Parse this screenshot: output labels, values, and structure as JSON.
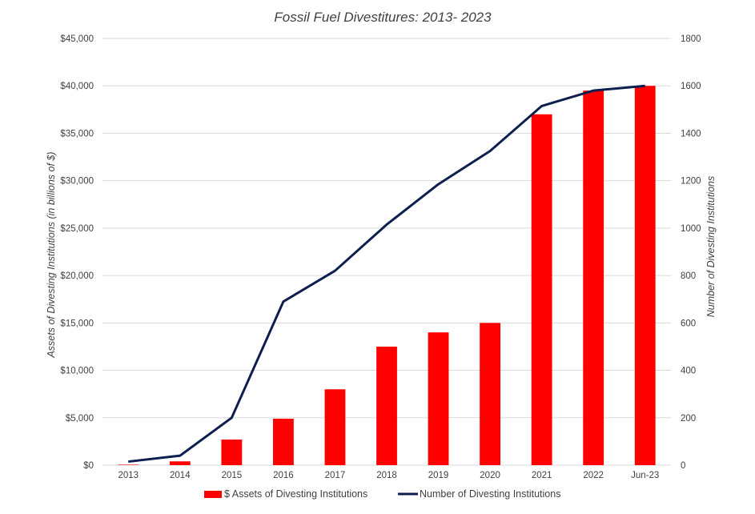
{
  "chart_data": {
    "type": "bar",
    "title": "Fossil Fuel Divestitures: 2013- 2023",
    "categories": [
      "2013",
      "2014",
      "2015",
      "2016",
      "2017",
      "2018",
      "2019",
      "2020",
      "2021",
      "2022",
      "Jun-23"
    ],
    "ylabel": "Assets of Divesting Institutions (in billions of $)",
    "y2label": "Number of Divesting Institutions",
    "ylim": [
      0,
      45000
    ],
    "y2lim": [
      0,
      1800
    ],
    "y_ticks": [
      "$0",
      "$5,000",
      "$10,000",
      "$15,000",
      "$20,000",
      "$25,000",
      "$30,000",
      "$35,000",
      "$40,000",
      "$45,000"
    ],
    "y2_ticks": [
      "0",
      "200",
      "400",
      "600",
      "800",
      "1000",
      "1200",
      "1400",
      "1600",
      "1800"
    ],
    "grid": true,
    "legend_position": "bottom",
    "series": [
      {
        "name": "$ Assets of Divesting Institutions",
        "type": "bar",
        "axis": "left",
        "color": "#ff0000",
        "values": [
          50,
          400,
          2700,
          4900,
          8000,
          12500,
          14000,
          15000,
          37000,
          39500,
          40000
        ]
      },
      {
        "name": "Number of Divesting Institutions",
        "type": "line",
        "axis": "right",
        "color": "#0d1f4e",
        "values": [
          15,
          40,
          200,
          690,
          820,
          1015,
          1185,
          1325,
          1515,
          1580,
          1600
        ]
      }
    ]
  }
}
